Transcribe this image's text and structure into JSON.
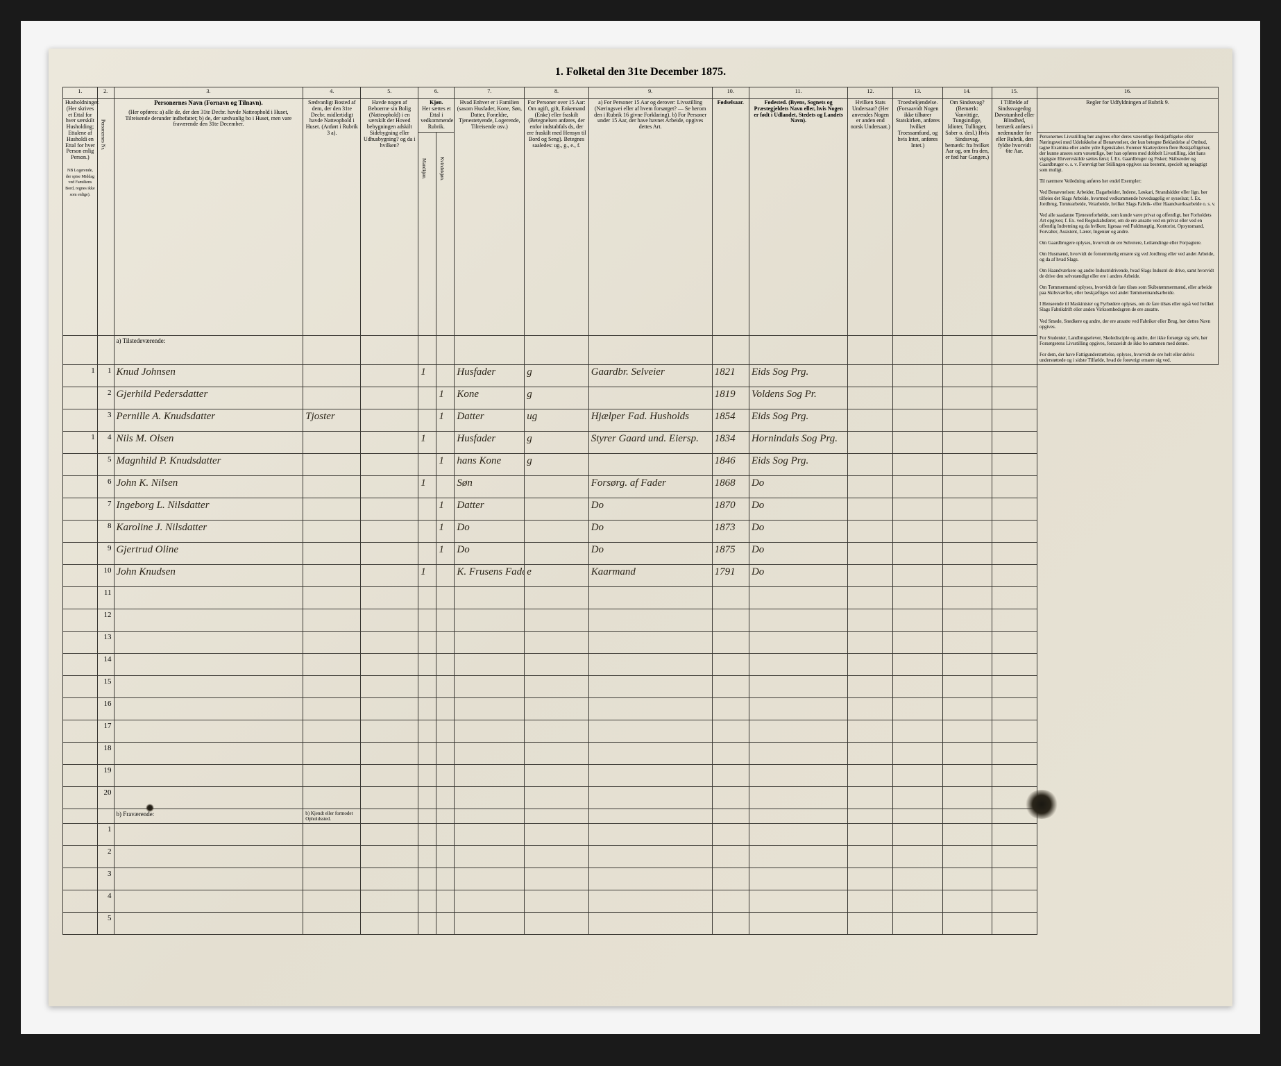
{
  "title": "1. Folketal den 31te December 1875.",
  "columns": {
    "nums": [
      "1.",
      "2.",
      "3.",
      "4.",
      "5.",
      "6.",
      "7.",
      "8.",
      "9.",
      "10.",
      "11.",
      "12.",
      "13.",
      "14.",
      "15.",
      "16."
    ],
    "h1": "Husholdninger. (Her skrives et Ettal for hver særskilt Husholding; Ettalene af Husholdi en Ettal for hver Person enlig Person.)",
    "h2": "Personernes Nr.",
    "h3_title": "Personernes Navn (Fornavn og Tilnavn).",
    "h3_body": "(Her opføres: a) alle de, der den 31te Decbr. havde Natteophold i Huset, Tilreisende derunder indbefattet; b) de, der sædvanlig bo i Huset, men vare fraværende den 31te December.",
    "h3_footer": "NB Logerende, der spise Middag ved Familiens Bord, regnes ikke som enlige).",
    "h4": "Sædvanligt Bosted af dem, der den 31te Decbr. midlertidigt havde Natteophold i Huset. (Anført i Rubrik 3 a).",
    "h5": "Havde nogen af Beboerne sin Bolig (Natteophold) i en særskilt der Hoved bebygningen adskilt Sidebygning eller Udhusbygning? og da i hvilken?",
    "h6_title": "Kjøn.",
    "h6_sub": "Her sættes et Ettal i vedkommende Rubrik.",
    "h6a": "Mandkjøn.",
    "h6b": "Kvindekjøn.",
    "h7": "Hvad Enhver er i Familien (sasom Husfader, Kone, Søn, Datter, Forældre, Tjenestetyende, Logerende, Tilreisende osv.)",
    "h8": "For Personer over 15 Aar: Om ugift, gift, Enkemand (Enke) eller fraskilt (Betegnelsen anføres, der enfor indstabfals ds, der ere fraskilt med Hensyn til Bord og Seng). Betegnes saaledes: ug., g., e., f.",
    "h9": "a) For Personer 15 Aar og derover: Livsstilling (Næringsvei eller af hvem forsørget? — Se herom den i Rubrik 16 givne Forklaring). b) For Personer under 15 Aar, der have havnet Arbeide, opgives dettes Art.",
    "h10": "Fødselsaar.",
    "h11": "Fødested. (Byens, Sognets og Præstegjeldets Navn eller, hvis Nogen er født i Udlandet, Stedets og Landets Navn).",
    "h12": "Hvilken Stats Undersaat? (Her anvendes Nogen er anden end norsk Undersaat.)",
    "h13": "Troesbekjendelse. (Forsaavidt Nogen ikke tilhører Statskirken, anføres hvilket Troessamfund, og hvis Intet, anføres Intet.)",
    "h14": "Om Sindssvag? (Bemærk: Vanvittige, Tungsindige, Idioter, Tullinger, Saber o. desl.) Hvis Sindssvag, bemærk: fra hvilket Aar og, om fra den, er fød har Gangen.)",
    "h15": "I Tilfælde af Sindssvagedog Døvstumhed eller Blindhed, bemærk anføes i nedenunder for eller Rubrik, den fyldte hvorvidt 6te Aar.",
    "h16_title": "Regler for Udfyldningen af Rubrik 9.",
    "h16_body": "Personernes Livsstilling bør angives efter deres væsentlige Beskjæftigelse eller Næringsvei med Udelukkelse af Benævnelser, der kun betegne Beklædelse af Ombud, tagne Examina eller andre ydre Egenskaber. Forener Skatteyderen flere Beskjæftigelser, der kunne ansees som væsentlige, bør han opføres med dobbelt Livsstilling, idet hans vigtigste Ehrvervskilde sættes først; f. Ex. Gaardbruger og Fisker; Skibsreder og Gaardbruger o. s. v. Forøvrigt bør Stillingen opgives saa bestemt, specielt og nøiagtigt som muligt.\n\nTil nærmere Veiledning anføres her endel Exempler:\n\nVed Benævnelsen: Arbeider, Dagarbeider, Inderst, Løskari, Strandsidder eller lign. bør tilføies det Slags Arbeide, hvormed vedkommende hovedsagelig er sysselsat; f. Ex. Jordbrug, Tomtearbeide, Veiarbeide, hvilket Slags Fabrik- eller Haandværksarbeide o. s. v.\n\nVed alle saadanne Tjenesteforhølde, som kunde være privat og offentligt, bør Forholdets Art opgives; f. Ex. ved Regnskabsfører, om de ere ansatte ved en privat eller ved en offentlig Indretning og da hvilken; ligesaa ved Fuldmægtig, Kontorist, Opsynsmand, Forvalter, Assistent, Lærer, Ingeniør og andre.\n\nOm Gaardbrugere oplyses, hvorvidt de ere Selveiere, Leilændinge eller Forpagtere.\n\nOm Husmænd, hvorvidt de fornemmelig ernære sig ved Jordbrug eller ved andet Arbeide, og da af hvad Slags.\n\nOm Haandværkere og andre Industridrivende, hvad Slags Industri de drive, samt hvorvidt de drive den selvstændigt eller ere i andres Arbeide.\n\nOm Tømmermænd oplyses, hvorvidt de fare tilsøs som Skibstømmermænd, eller arbeide paa Skibsværfter, eller beskjæftiges ved andet Tømmermandsarbeide.\n\nI Henseende til Maskinister og Fyrbødere oplyses, om de fare tilsøs eller også ved hvilket Slags Fabrikdrift eller anden Virksomhedsgren de ere ansatte.\n\nVed Smede, Snedkere og andre, der ere ansatte ved Fabriker eller Brug, bør dettes Navn opgives.\n\nFor Studenter, Landbrugselever, Skoledisciple og andre, der ikke forsørge sig selv, bør Forsørgerens Livsstilling opgives, forsaavidt de ikke bo sammen med denne.\n\nFor dem, der have Fattigunderstøttelse, oplyses, hvorvidt de ere helt eller delvis understøttede og i sidste Tilfælde, hvad de forøvrigt ernære sig ved."
  },
  "section_a": "a) Tilstedeværende:",
  "section_b": "b) Fraværende:",
  "section_b_col4": "b) Kjendt eller formodet Opholdssted.",
  "rows": [
    {
      "n": "1",
      "hh": "1",
      "name": "Knud Johnsen",
      "c4": "",
      "c5": "",
      "c6a": "1",
      "c6b": "",
      "c7": "Husfader",
      "c8": "g",
      "c9": "Gaardbr. Selveier",
      "c10": "1821",
      "c11": "Eids Sog Prg."
    },
    {
      "n": "2",
      "hh": "",
      "name": "Gjerhild Pedersdatter",
      "c4": "",
      "c5": "",
      "c6a": "",
      "c6b": "1",
      "c7": "Kone",
      "c8": "g",
      "c9": "",
      "c10": "1819",
      "c11": "Voldens Sog Pr."
    },
    {
      "n": "3",
      "hh": "",
      "name": "Pernille A. Knudsdatter",
      "c4": "Tjoster",
      "c5": "",
      "c6a": "",
      "c6b": "1",
      "c7": "Datter",
      "c8": "ug",
      "c9": "Hjælper Fad. Husholds",
      "c10": "1854",
      "c11": "Eids Sog Prg."
    },
    {
      "n": "4",
      "hh": "1",
      "name": "Nils M. Olsen",
      "c4": "",
      "c5": "",
      "c6a": "1",
      "c6b": "",
      "c7": "Husfader",
      "c8": "g",
      "c9": "Styrer Gaard und. Eiersp.",
      "c10": "1834",
      "c11": "Hornindals Sog Prg."
    },
    {
      "n": "5",
      "hh": "",
      "name": "Magnhild P. Knudsdatter",
      "c4": "",
      "c5": "",
      "c6a": "",
      "c6b": "1",
      "c7": "hans Kone",
      "c8": "g",
      "c9": "",
      "c10": "1846",
      "c11": "Eids Sog Prg."
    },
    {
      "n": "6",
      "hh": "",
      "name": "John K. Nilsen",
      "c4": "",
      "c5": "",
      "c6a": "1",
      "c6b": "",
      "c7": "Søn",
      "c8": "",
      "c9": "Forsørg. af Fader",
      "c10": "1868",
      "c11": "Do"
    },
    {
      "n": "7",
      "hh": "",
      "name": "Ingeborg L. Nilsdatter",
      "c4": "",
      "c5": "",
      "c6a": "",
      "c6b": "1",
      "c7": "Datter",
      "c8": "",
      "c9": "Do",
      "c10": "1870",
      "c11": "Do"
    },
    {
      "n": "8",
      "hh": "",
      "name": "Karoline J. Nilsdatter",
      "c4": "",
      "c5": "",
      "c6a": "",
      "c6b": "1",
      "c7": "Do",
      "c8": "",
      "c9": "Do",
      "c10": "1873",
      "c11": "Do"
    },
    {
      "n": "9",
      "hh": "",
      "name": "Gjertrud Oline",
      "c4": "",
      "c5": "",
      "c6a": "",
      "c6b": "1",
      "c7": "Do",
      "c8": "",
      "c9": "Do",
      "c10": "1875",
      "c11": "Do"
    },
    {
      "n": "10",
      "hh": "",
      "name": "John Knudsen",
      "c4": "",
      "c5": "",
      "c6a": "1",
      "c6b": "",
      "c7": "K. Frusens Fader",
      "c8": "e",
      "c9": "Kaarmand",
      "c10": "1791",
      "c11": "Do"
    }
  ],
  "empty_a": [
    "11",
    "12",
    "13",
    "14",
    "15",
    "16",
    "17",
    "18",
    "19",
    "20"
  ],
  "empty_b": [
    "1",
    "2",
    "3",
    "4",
    "5"
  ],
  "colors": {
    "bg": "#e8e4d8",
    "border": "#3a3833",
    "ink": "#2a2418"
  }
}
